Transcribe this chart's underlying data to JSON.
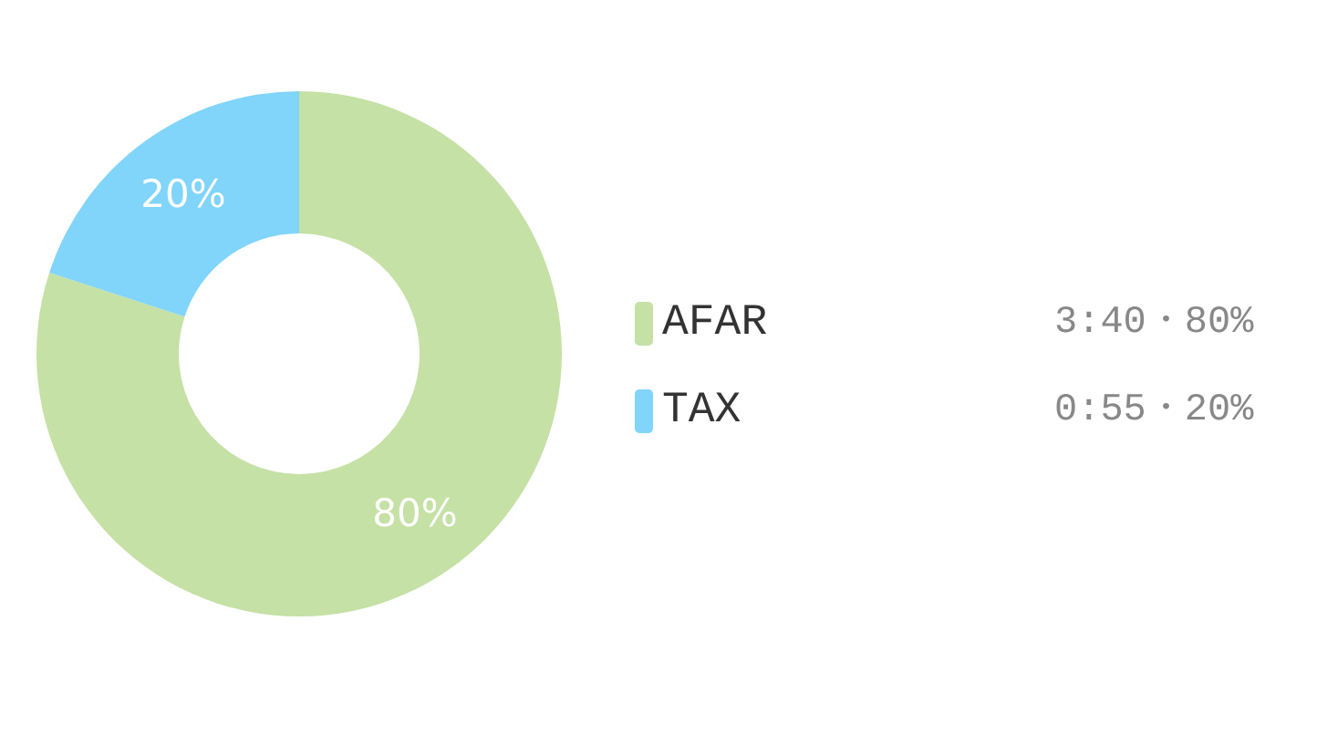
{
  "chart_data": {
    "type": "donut",
    "categories": [
      "AFAR",
      "TAX"
    ],
    "values": [
      80,
      20
    ],
    "colors": [
      "#c5e1a5",
      "#81d4fa"
    ],
    "value_labels": [
      "80%",
      "20%"
    ],
    "annotations": [
      "3:40・80%",
      "0:55・20%"
    ],
    "legend": "right"
  }
}
